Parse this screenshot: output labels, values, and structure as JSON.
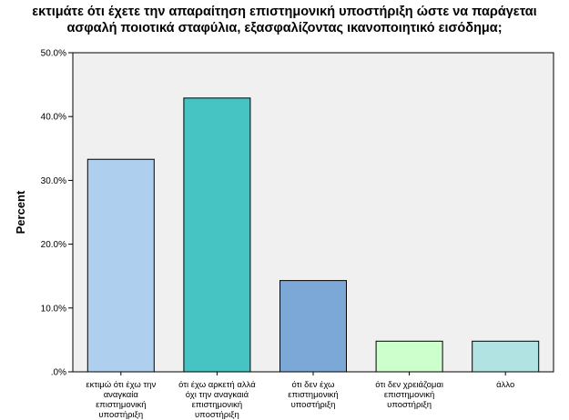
{
  "chart_data": {
    "type": "bar",
    "title_lines": [
      "εκτιμάτε ότι έχετε την απαραίτηση επιστημονική υποστήριξη ώστε να παράγεται",
      "ασφαλή ποιοτικά σταφύλια, εξασφαλίζοντας ικανοποιητικό εισόδημα;"
    ],
    "ylabel": "Percent",
    "xlabel": "",
    "ylim": [
      0,
      50
    ],
    "yticks": [
      0,
      10,
      20,
      30,
      40,
      50
    ],
    "ytick_labels": [
      ".0%",
      "10.0%",
      "20.0%",
      "30.0%",
      "40.0%",
      "50.0%"
    ],
    "grid": false,
    "categories": [
      [
        "εκτιμώ ότι έχω την",
        "αναγκαία",
        "επιστημονική",
        "υποστήριξη"
      ],
      [
        "ότι έχω αρκετή αλλά",
        "όχι την αναγκαιά",
        "επιστημονική",
        "υποστήριξη"
      ],
      [
        "ότι δεν έχω",
        "επιστημονική",
        "υποστήριξη"
      ],
      [
        "ότι δεν χρειάζομαι",
        "επιστημονική",
        "υποστήριξη"
      ],
      [
        "άλλο"
      ]
    ],
    "values": [
      33.3,
      42.9,
      14.3,
      4.8,
      4.8
    ],
    "colors": [
      "#afcfee",
      "#46c3c3",
      "#7ba8d6",
      "#ccffcc",
      "#b2e3e3"
    ],
    "background": "#f0f0f0"
  }
}
